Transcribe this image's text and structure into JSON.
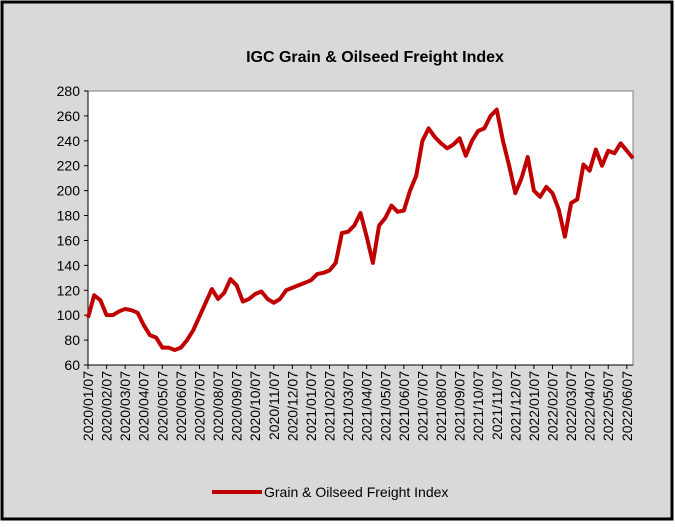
{
  "chart_data": {
    "type": "line",
    "title": "IGC Grain & Oilseed Freight Index",
    "categories": [
      "2020/01/07",
      null,
      null,
      "2020/02/07",
      null,
      null,
      "2020/03/07",
      null,
      null,
      "2020/04/07",
      null,
      null,
      "2020/05/07",
      null,
      null,
      "2020/06/07",
      null,
      null,
      "2020/07/07",
      null,
      null,
      "2020/08/07",
      null,
      null,
      "2020/09/07",
      null,
      null,
      "2020/10/07",
      null,
      null,
      "2020/11/07",
      null,
      null,
      "2020/12/07",
      null,
      null,
      "2021/01/07",
      null,
      null,
      "2021/02/07",
      null,
      null,
      "2021/03/07",
      null,
      null,
      "2021/04/07",
      null,
      null,
      "2021/05/07",
      null,
      null,
      "2021/06/07",
      null,
      null,
      "2021/07/07",
      null,
      null,
      "2021/08/07",
      null,
      null,
      "2021/09/07",
      null,
      null,
      "2021/10/07",
      null,
      null,
      "2021/11/07",
      null,
      null,
      "2021/12/07",
      null,
      null,
      "2022/01/07",
      null,
      null,
      "2022/02/07",
      null,
      null,
      "2022/03/07",
      null,
      null,
      "2022/04/07",
      null,
      null,
      "2022/05/07",
      null,
      null,
      "2022/06/07",
      null
    ],
    "series": [
      {
        "name": "Grain & Oilseed Freight Index",
        "color": "#c00000",
        "values": [
          98,
          116,
          112,
          100,
          100,
          103,
          105,
          104,
          102,
          92,
          84,
          82,
          74,
          74,
          72,
          74,
          80,
          88,
          99,
          110,
          121,
          113,
          118,
          129,
          124,
          111,
          113,
          117,
          119,
          113,
          110,
          113,
          120,
          122,
          124,
          126,
          128,
          133,
          134,
          136,
          142,
          166,
          167,
          172,
          182,
          163,
          142,
          172,
          178,
          188,
          183,
          184,
          200,
          212,
          240,
          250,
          243,
          238,
          234,
          237,
          242,
          228,
          240,
          248,
          250,
          260,
          265,
          240,
          220,
          198,
          210,
          227,
          200,
          195,
          203,
          198,
          185,
          163,
          190,
          193,
          221,
          216,
          233,
          220,
          232,
          230,
          238,
          232,
          226
        ]
      }
    ],
    "ylim": [
      60,
      280
    ],
    "yticks": [
      60,
      80,
      100,
      120,
      140,
      160,
      180,
      200,
      220,
      240,
      260,
      280
    ],
    "grid": false,
    "legend": "bottom"
  }
}
